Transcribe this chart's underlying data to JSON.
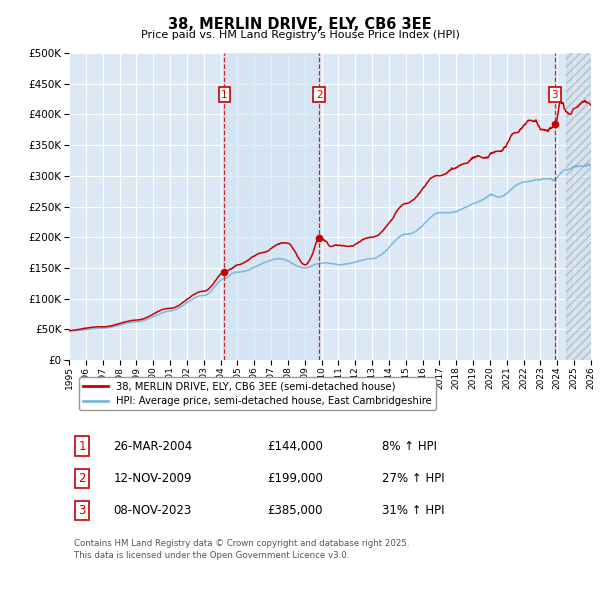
{
  "title": "38, MERLIN DRIVE, ELY, CB6 3EE",
  "subtitle": "Price paid vs. HM Land Registry's House Price Index (HPI)",
  "ylim": [
    0,
    500000
  ],
  "yticks": [
    0,
    50000,
    100000,
    150000,
    200000,
    250000,
    300000,
    350000,
    400000,
    450000,
    500000
  ],
  "ytick_labels": [
    "£0",
    "£50K",
    "£100K",
    "£150K",
    "£200K",
    "£250K",
    "£300K",
    "£350K",
    "£400K",
    "£450K",
    "£500K"
  ],
  "hpi_color": "#7ab8e0",
  "price_color": "#cc0000",
  "background_color": "#ffffff",
  "plot_bg_color": "#dce9f5",
  "grid_color": "#ffffff",
  "transactions": [
    {
      "date_num": 2004.23,
      "price": 144000,
      "label": "1"
    },
    {
      "date_num": 2009.87,
      "price": 199000,
      "label": "2"
    },
    {
      "date_num": 2023.86,
      "price": 385000,
      "label": "3"
    }
  ],
  "legend_price_label": "38, MERLIN DRIVE, ELY, CB6 3EE (semi-detached house)",
  "legend_hpi_label": "HPI: Average price, semi-detached house, East Cambridgeshire",
  "table_rows": [
    {
      "num": "1",
      "date": "26-MAR-2004",
      "price": "£144,000",
      "pct": "8% ↑ HPI"
    },
    {
      "num": "2",
      "date": "12-NOV-2009",
      "price": "£199,000",
      "pct": "27% ↑ HPI"
    },
    {
      "num": "3",
      "date": "08-NOV-2023",
      "price": "£385,000",
      "pct": "31% ↑ HPI"
    }
  ],
  "footer": "Contains HM Land Registry data © Crown copyright and database right 2025.\nThis data is licensed under the Open Government Licence v3.0.",
  "xmin": 1995.0,
  "xmax": 2026.0,
  "hatch_start": 2024.5,
  "shade_between_sales": true
}
